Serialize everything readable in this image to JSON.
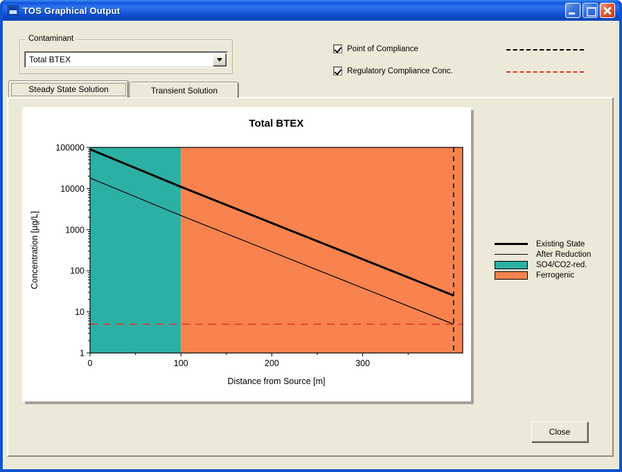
{
  "window": {
    "title": "TOS Graphical Output"
  },
  "contaminant": {
    "group_label": "Contaminant",
    "selected": "Total BTEX"
  },
  "options": [
    {
      "label": "Point of Compliance",
      "checked": true,
      "line_color": "#000000"
    },
    {
      "label": "Regulatory Compliance Conc.",
      "checked": true,
      "line_color": "#E03028"
    }
  ],
  "tabs": [
    {
      "label": "Steady State Solution",
      "active": true
    },
    {
      "label": "Transient Solution",
      "active": false
    }
  ],
  "legend": {
    "items": [
      {
        "label": "Existing State",
        "sample": "thick-line",
        "color": "#000000"
      },
      {
        "label": "After Reduction",
        "sample": "thin-line",
        "color": "#000000"
      },
      {
        "label": "SO4/CO2-red.",
        "sample": "swatch",
        "color": "#2CB0A4"
      },
      {
        "label": "Ferrogenic",
        "sample": "swatch",
        "color": "#F8834E"
      }
    ]
  },
  "close_button": {
    "label": "Close"
  },
  "colors": {
    "zone_so4": "#2CB0A4",
    "zone_ferrogenic": "#F8834E",
    "regulatory_line": "#E03028",
    "compliance_line": "#000000",
    "series_line": "#000000"
  },
  "chart_data": {
    "type": "line",
    "title": "Total BTEX",
    "xlabel": "Distance from Source [m]",
    "ylabel": "Concentration [µg/L]",
    "grid": false,
    "legend_position": "right-outside",
    "xlim": [
      0,
      410
    ],
    "x_ticks": [
      0,
      100,
      200,
      300,
      400
    ],
    "x_minor_step": 50,
    "y_scale": "log",
    "ylim": [
      1,
      100000
    ],
    "y_ticks": [
      1,
      10,
      100,
      1000,
      10000,
      100000
    ],
    "series": [
      {
        "name": "Existing State",
        "style": "thick",
        "x": [
          0,
          100,
          400
        ],
        "y": [
          90000,
          11000,
          25
        ]
      },
      {
        "name": "After Reduction",
        "style": "thin",
        "x": [
          0,
          100,
          400
        ],
        "y": [
          18000,
          2200,
          5
        ]
      }
    ],
    "zones": [
      {
        "name": "SO4/CO2-red.",
        "x_range": [
          0,
          100
        ],
        "color": "#2CB0A4"
      },
      {
        "name": "Ferrogenic",
        "x_range": [
          100,
          410
        ],
        "color": "#F8834E"
      }
    ],
    "reference_lines": [
      {
        "name": "Point of Compliance",
        "axis": "x",
        "value": 400,
        "style": "dashed",
        "color": "#000000"
      },
      {
        "name": "Regulatory Compliance Conc.",
        "axis": "y",
        "value": 5,
        "style": "dashed",
        "color": "#E03028"
      }
    ]
  }
}
